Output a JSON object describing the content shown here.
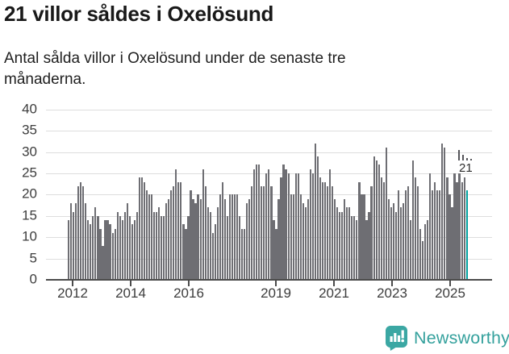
{
  "header": {
    "title": "21 villor såldes i Oxelösund",
    "subtitle": "Antal sålda villor i Oxelösund under de senaste tre månaderna."
  },
  "chart_data": {
    "type": "bar",
    "title": "21 villor såldes i Oxelösund",
    "subtitle": "Antal sålda villor i Oxelösund under de senaste tre månaderna.",
    "x_unit": "month",
    "x_start": "2012-01",
    "x_end": "2025-08",
    "ylim": [
      0,
      40
    ],
    "yticks": [
      0,
      5,
      10,
      15,
      20,
      25,
      30,
      35,
      40
    ],
    "xticks": [
      "2012",
      "2014",
      "2016",
      "2019",
      "2021",
      "2023",
      "2025"
    ],
    "grid": true,
    "legend": "none",
    "annotation_label": "21",
    "highlight_last_bar": true,
    "series": [
      {
        "name": "Antal sålda villor",
        "values": [
          14,
          18,
          16,
          18,
          22,
          23,
          22,
          18,
          14,
          13,
          15,
          17,
          15,
          12,
          8,
          14,
          14,
          13,
          11,
          12,
          16,
          15,
          14,
          16,
          18,
          15,
          13,
          14,
          16,
          24,
          24,
          23,
          21,
          20,
          20,
          16,
          16,
          17,
          15,
          15,
          18,
          19,
          21,
          22,
          26,
          23,
          23,
          13,
          12,
          15,
          21,
          19,
          18,
          20,
          19,
          26,
          22,
          17,
          16,
          11,
          13,
          17,
          20,
          23,
          19,
          15,
          20,
          20,
          20,
          20,
          15,
          12,
          12,
          18,
          19,
          22,
          26,
          27,
          27,
          22,
          22,
          25,
          26,
          22,
          14,
          12,
          19,
          24,
          27,
          26,
          25,
          20,
          20,
          25,
          25,
          20,
          18,
          17,
          19,
          26,
          25,
          32,
          29,
          24,
          23,
          23,
          22,
          26,
          22,
          19,
          17,
          16,
          16,
          19,
          17,
          17,
          15,
          15,
          14,
          23,
          20,
          20,
          14,
          16,
          22,
          29,
          28,
          27,
          24,
          23,
          31,
          19,
          17,
          18,
          16,
          21,
          17,
          18,
          21,
          22,
          14,
          28,
          24,
          22,
          12,
          9,
          13,
          14,
          25,
          21,
          23,
          21,
          21,
          32,
          31,
          24,
          20,
          17,
          25,
          23,
          25,
          23,
          24,
          21
        ]
      }
    ]
  },
  "colors": {
    "bar": "#6e6e73",
    "highlight": "#00a29f",
    "gridline": "#dddddd",
    "axis": "#4b4b4b",
    "brand_teal": "#3ba7a3"
  },
  "footer": {
    "brand": "Newsworthy"
  }
}
